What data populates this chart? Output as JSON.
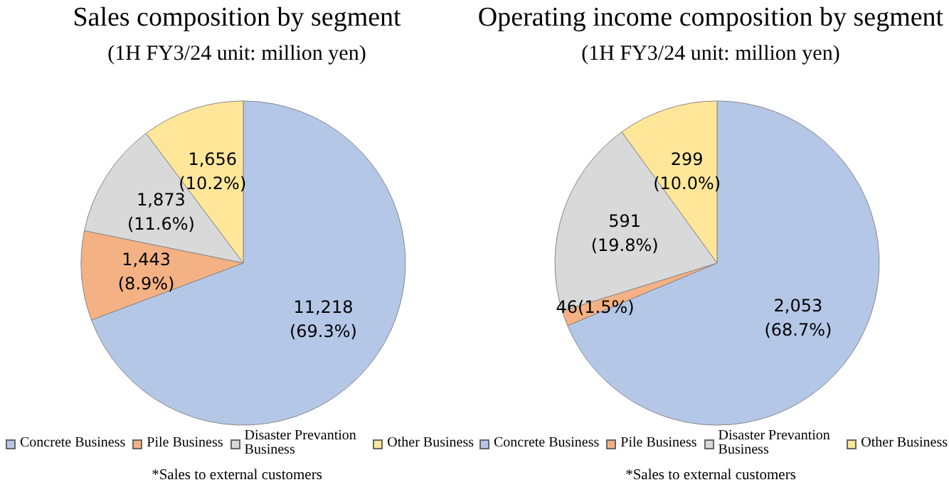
{
  "chart_data": [
    {
      "type": "pie",
      "title": "Sales composition by segment",
      "subtitle": "(1H FY3/24 unit: million yen)",
      "categories": [
        "Concrete Business",
        "Pile Business",
        "Disaster Prevantion Business",
        "Other Business"
      ],
      "values": [
        11218,
        1443,
        1873,
        1656
      ],
      "colors": [
        "#b4c7e7",
        "#f4b183",
        "#d9d9d9",
        "#ffe699"
      ],
      "value_labels": [
        "11,218\n(69.3%)",
        "1,443\n(8.9%)",
        "1,873\n(11.6%)",
        "1,656\n(10.2%)"
      ],
      "legend": "bottom",
      "annotations": [
        "*Sales to external customers"
      ]
    },
    {
      "type": "pie",
      "title": "Operating income composition by segment",
      "subtitle": "(1H FY3/24 unit: million yen)",
      "categories": [
        "Concrete Business",
        "Pile Business",
        "Disaster Prevantion Business",
        "Other Business"
      ],
      "values": [
        2053,
        46,
        591,
        299
      ],
      "colors": [
        "#b4c7e7",
        "#f4b183",
        "#d9d9d9",
        "#ffe699"
      ],
      "value_labels": [
        "2,053\n(68.7%)",
        "46(1.5%)",
        "591\n(19.8%)",
        "299\n(10.0%)"
      ],
      "legend": "bottom",
      "annotations": [
        "*Sales to external customers"
      ]
    }
  ]
}
